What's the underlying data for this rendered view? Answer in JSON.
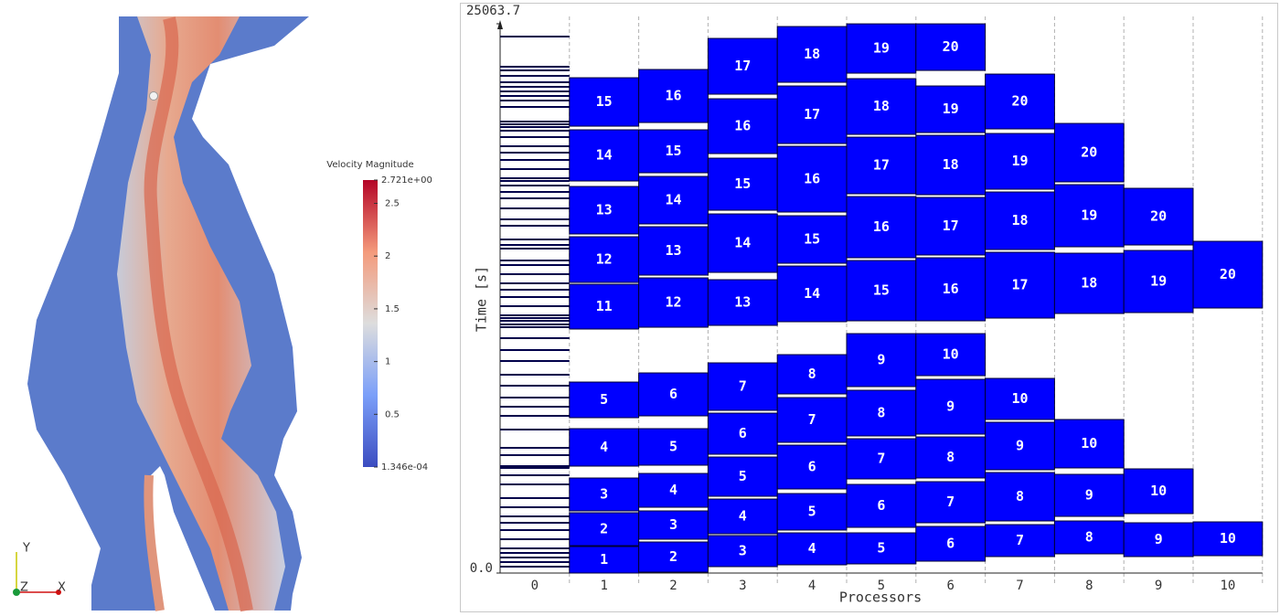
{
  "render_view": {
    "colorbar": {
      "title": "Velocity Magnitude",
      "lim": [
        {
          "value": 0.0001346,
          "label": "1.346e-04"
        },
        {
          "value": 2.721,
          "label": "2.721e+00"
        }
      ],
      "ticks": [
        0.5,
        1,
        1.5,
        2,
        2.5
      ]
    },
    "axes": [
      "Y",
      "Z",
      "X"
    ]
  },
  "chart_data": {
    "type": "gantt",
    "xlabel": "Processors",
    "ylabel": "Time [s]",
    "categories": [
      "0",
      "1",
      "2",
      "3",
      "4",
      "5",
      "6",
      "7",
      "8",
      "9",
      "10"
    ],
    "ylim": [
      0,
      25063.7
    ],
    "yticks": [
      {
        "value": 0,
        "label": "0.0"
      },
      25063.7
    ],
    "grid": true,
    "color": "#0000ff",
    "event_color": "#00004a",
    "processors": [
      {
        "events": [
          292,
          500,
          709,
          917,
          1126,
          1543,
          1960,
          2294,
          2585,
          3002,
          3419,
          4045,
          4462,
          4796,
          4879,
          5379,
          5713,
          6547,
          7172,
          7589,
          8006,
          8549,
          9049,
          9674,
          10175,
          10717,
          11217,
          11342,
          11509,
          11634,
          11759,
          12176,
          12593,
          12927,
          13219,
          13636,
          14053,
          14261,
          14804,
          14970,
          15221,
          15846,
          16138,
          16638,
          17097,
          17389,
          17681,
          17889,
          18014,
          18431,
          18848,
          19182,
          19474,
          19891,
          20183,
          20350,
          20475,
          20600,
          21267,
          21559,
          21767,
          21976,
          22185,
          22393,
          22685,
          22935,
          23102,
          24478
        ]
      },
      {
        "tasks": [
          {
            "label": "1",
            "start": 0,
            "end": 1209
          },
          {
            "label": "2",
            "start": 1251,
            "end": 2752
          },
          {
            "label": "3",
            "start": 2836,
            "end": 4337
          },
          {
            "label": "4",
            "start": 4879,
            "end": 6589
          },
          {
            "label": "5",
            "start": 7089,
            "end": 8715
          },
          {
            "label": "11",
            "start": 11134,
            "end": 13177
          },
          {
            "label": "12",
            "start": 13261,
            "end": 15346
          },
          {
            "label": "13",
            "start": 15471,
            "end": 17639
          },
          {
            "label": "14",
            "start": 17889,
            "end": 20225
          },
          {
            "label": "15",
            "start": 20391,
            "end": 22601
          }
        ]
      },
      {
        "tasks": [
          {
            "label": "2",
            "start": 42,
            "end": 1418
          },
          {
            "label": "3",
            "start": 1543,
            "end": 2836
          },
          {
            "label": "4",
            "start": 3002,
            "end": 4545
          },
          {
            "label": "5",
            "start": 4921,
            "end": 6589
          },
          {
            "label": "6",
            "start": 7172,
            "end": 9132
          },
          {
            "label": "12",
            "start": 11217,
            "end": 13469
          },
          {
            "label": "13",
            "start": 13594,
            "end": 15804
          },
          {
            "label": "14",
            "start": 15929,
            "end": 18098
          },
          {
            "label": "15",
            "start": 18265,
            "end": 20225
          },
          {
            "label": "16",
            "start": 20558,
            "end": 22977
          }
        ]
      },
      {
        "tasks": [
          {
            "label": "3",
            "start": 292,
            "end": 1710
          },
          {
            "label": "4",
            "start": 1793,
            "end": 3378
          },
          {
            "label": "5",
            "start": 3503,
            "end": 5296
          },
          {
            "label": "6",
            "start": 5421,
            "end": 7298
          },
          {
            "label": "7",
            "start": 7423,
            "end": 9591
          },
          {
            "label": "13",
            "start": 11301,
            "end": 13386
          },
          {
            "label": "14",
            "start": 13719,
            "end": 16388
          },
          {
            "label": "15",
            "start": 16555,
            "end": 18932
          },
          {
            "label": "16",
            "start": 19140,
            "end": 21642
          },
          {
            "label": "17",
            "start": 21851,
            "end": 24395
          }
        ]
      },
      {
        "tasks": [
          {
            "label": "4",
            "start": 375,
            "end": 1835
          },
          {
            "label": "5",
            "start": 1960,
            "end": 3628
          },
          {
            "label": "6",
            "start": 3836,
            "end": 5838
          },
          {
            "label": "7",
            "start": 5963,
            "end": 8006
          },
          {
            "label": "8",
            "start": 8173,
            "end": 9966
          },
          {
            "label": "14",
            "start": 11468,
            "end": 14011
          },
          {
            "label": "15",
            "start": 14136,
            "end": 16305
          },
          {
            "label": "16",
            "start": 16472,
            "end": 19474
          },
          {
            "label": "17",
            "start": 19599,
            "end": 22226
          },
          {
            "label": "18",
            "start": 22393,
            "end": 24937
          }
        ]
      },
      {
        "tasks": [
          {
            "label": "5",
            "start": 417,
            "end": 1835
          },
          {
            "label": "6",
            "start": 2085,
            "end": 4045
          },
          {
            "label": "7",
            "start": 4295,
            "end": 6130
          },
          {
            "label": "8",
            "start": 6255,
            "end": 8340
          },
          {
            "label": "9",
            "start": 8507,
            "end": 10925
          },
          {
            "label": "15",
            "start": 11509,
            "end": 14261
          },
          {
            "label": "16",
            "start": 14387,
            "end": 17180
          },
          {
            "label": "17",
            "start": 17306,
            "end": 19891
          },
          {
            "label": "18",
            "start": 20016,
            "end": 22560
          },
          {
            "label": "19",
            "start": 22810,
            "end": 25060
          }
        ]
      },
      {
        "tasks": [
          {
            "label": "6",
            "start": 542,
            "end": 2127
          },
          {
            "label": "7",
            "start": 2294,
            "end": 4170
          },
          {
            "label": "8",
            "start": 4337,
            "end": 6213
          },
          {
            "label": "9",
            "start": 6338,
            "end": 8840
          },
          {
            "label": "10",
            "start": 9007,
            "end": 10925
          },
          {
            "label": "16",
            "start": 11509,
            "end": 14387
          },
          {
            "label": "17",
            "start": 14512,
            "end": 17139
          },
          {
            "label": "18",
            "start": 17264,
            "end": 19974
          },
          {
            "label": "19",
            "start": 20099,
            "end": 22226
          },
          {
            "label": "20",
            "start": 22935,
            "end": 25060
          }
        ]
      },
      {
        "tasks": [
          {
            "label": "7",
            "start": 751,
            "end": 2210
          },
          {
            "label": "8",
            "start": 2377,
            "end": 4587
          },
          {
            "label": "9",
            "start": 4712,
            "end": 6881
          },
          {
            "label": "10",
            "start": 7006,
            "end": 8882
          },
          {
            "label": "17",
            "start": 11634,
            "end": 14637
          },
          {
            "label": "18",
            "start": 14762,
            "end": 17389
          },
          {
            "label": "19",
            "start": 17514,
            "end": 20058
          },
          {
            "label": "20",
            "start": 20266,
            "end": 22768
          }
        ]
      },
      {
        "tasks": [
          {
            "label": "8",
            "start": 876,
            "end": 2377
          },
          {
            "label": "9",
            "start": 2585,
            "end": 4504
          },
          {
            "label": "10",
            "start": 4796,
            "end": 7006
          },
          {
            "label": "18",
            "start": 11843,
            "end": 14595
          },
          {
            "label": "19",
            "start": 14887,
            "end": 17723
          },
          {
            "label": "20",
            "start": 17848,
            "end": 20516
          }
        ]
      },
      {
        "tasks": [
          {
            "label": "9",
            "start": 751,
            "end": 2294
          },
          {
            "label": "10",
            "start": 2711,
            "end": 4754
          },
          {
            "label": "19",
            "start": 11885,
            "end": 14720
          },
          {
            "label": "20",
            "start": 14970,
            "end": 17556
          }
        ]
      },
      {
        "tasks": [
          {
            "label": "10",
            "start": 792,
            "end": 2335
          },
          {
            "label": "20",
            "start": 12093,
            "end": 15137
          }
        ]
      }
    ]
  }
}
